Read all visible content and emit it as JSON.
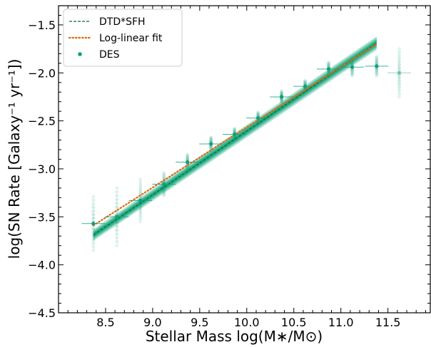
{
  "chart_data": {
    "type": "scatter",
    "xlabel": "Stellar Mass log(M∗/M⊙)",
    "ylabel": "log(SN Rate [Galaxy⁻¹ yr⁻¹])",
    "xlim": [
      8.0,
      11.95
    ],
    "ylim": [
      -4.5,
      -1.3
    ],
    "x_ticks": [
      8.5,
      9.0,
      9.5,
      10.0,
      10.5,
      11.0,
      11.5
    ],
    "x_tick_labels": [
      "8.5",
      "9.0",
      "9.5",
      "10.0",
      "10.5",
      "11.0",
      "11.5"
    ],
    "y_ticks": [
      -4.5,
      -4.0,
      -3.5,
      -3.0,
      -2.5,
      -2.0,
      -1.5
    ],
    "y_tick_labels": [
      "−4.5",
      "−4.0",
      "−3.5",
      "−3.0",
      "−2.5",
      "−2.0",
      "−1.5"
    ],
    "legend_position": "top-left",
    "series": [
      {
        "name": "DTD*SFH",
        "style": "dashed line with green uncertainty band",
        "color": "#0f6b2e",
        "band_color": "#12a57a",
        "x": [
          8.37,
          11.38
        ],
        "y": [
          -3.69,
          -1.69
        ],
        "band_halfwidth": [
          0.06,
          0.07
        ]
      },
      {
        "name": "Log-linear fit",
        "style": "dotted",
        "color": "#e4670e",
        "x": [
          8.37,
          11.38
        ],
        "y": [
          -3.59,
          -1.7
        ]
      },
      {
        "name": "DES",
        "style": "points with horizontal bin errorbars",
        "color": "#0fa07d",
        "x": [
          8.37,
          8.62,
          8.87,
          9.12,
          9.37,
          9.62,
          9.87,
          10.12,
          10.37,
          10.62,
          10.87,
          11.12,
          11.38,
          11.62
        ],
        "y": [
          -3.57,
          -3.5,
          -3.33,
          -3.16,
          -2.93,
          -2.74,
          -2.64,
          -2.47,
          -2.25,
          -2.14,
          -1.96,
          -1.94,
          -1.93,
          -2.0
        ],
        "xerr": [
          0.125,
          0.125,
          0.125,
          0.125,
          0.125,
          0.125,
          0.125,
          0.125,
          0.125,
          0.125,
          0.125,
          0.125,
          0.125,
          0.125
        ],
        "spread": [
          0.28,
          0.3,
          0.22,
          0.12,
          0.08,
          0.07,
          0.06,
          0.06,
          0.06,
          0.06,
          0.07,
          0.09,
          0.1,
          0.25
        ]
      }
    ]
  }
}
